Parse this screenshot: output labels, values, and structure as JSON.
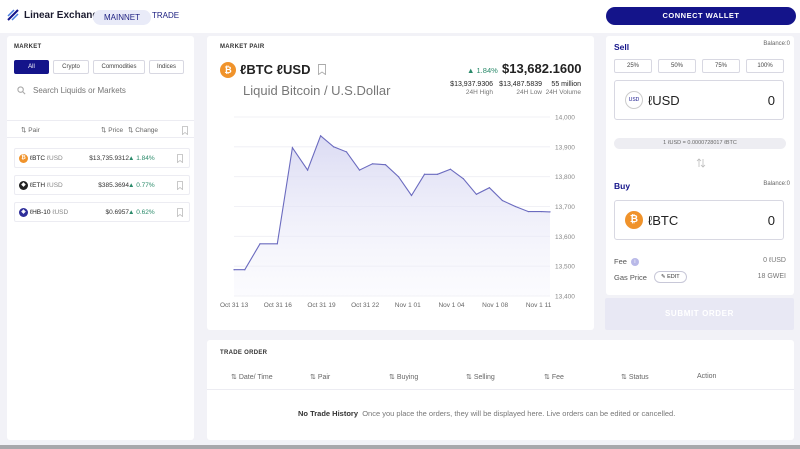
{
  "header": {
    "brand": "Linear Exchange",
    "network": "MAINNET",
    "trade_link": "TRADE",
    "connect_wallet": "CONNECT WALLET"
  },
  "market": {
    "title": "MARKET",
    "filters": [
      "All",
      "Crypto",
      "Commodities",
      "Indices"
    ],
    "search_placeholder": "Search Liquids or Markets",
    "columns": {
      "pair": "Pair",
      "price": "Price",
      "change": "Change"
    },
    "rows": [
      {
        "base": "ℓBTC",
        "quote": "ℓUSD",
        "price": "$13,735.9312",
        "change": "1.84%",
        "coin_color": "#f0932b",
        "coin_symbol": "₿"
      },
      {
        "base": "ℓETH",
        "quote": "ℓUSD",
        "price": "$385.3694",
        "change": "0.77%",
        "coin_color": "#222222",
        "coin_symbol": "◆"
      },
      {
        "base": "ℓHB-10",
        "quote": "ℓUSD",
        "price": "$0.6957",
        "change": "0.62%",
        "coin_color": "#2e2e9a",
        "coin_symbol": "◈"
      }
    ]
  },
  "chart_panel": {
    "title": "MARKET PAIR",
    "pair": "ℓBTC ℓUSD",
    "pair_full": "Liquid Bitcoin / U.S.Dollar",
    "change": "1.84%",
    "price": "$13,682.1600",
    "high": "$13,937.9306",
    "high_label": "24H High",
    "low": "$13,487.5839",
    "low_label": "24H Low",
    "volume": "55 million",
    "volume_label": "24H Volume"
  },
  "chart_data": {
    "type": "area",
    "title": "",
    "xlabel": "",
    "ylabel": "",
    "ylim": [
      13400,
      14000
    ],
    "y_ticks": [
      "14,000",
      "13,900",
      "13,800",
      "13,700",
      "13,600",
      "13,500",
      "13,400"
    ],
    "x_ticks": [
      "Oct 31 13",
      "Oct 31 16",
      "Oct 31 19",
      "Oct 31 22",
      "Nov 1 01",
      "Nov 1 04",
      "Nov 1 08",
      "Nov 1 11"
    ],
    "series": [
      {
        "name": "ℓBTC/ℓUSD",
        "x": [
          0,
          0.25,
          0.6,
          1.0,
          1.35,
          1.7,
          2.0,
          2.3,
          2.6,
          2.9,
          3.2,
          3.5,
          3.8,
          4.1,
          4.4,
          4.7,
          5.0,
          5.3,
          5.6,
          5.9,
          6.2,
          6.5,
          6.8,
          7.1,
          7.3
        ],
        "values": [
          13488,
          13488,
          13575,
          13575,
          13897,
          13822,
          13937,
          13900,
          13883,
          13822,
          13843,
          13840,
          13800,
          13737,
          13808,
          13808,
          13825,
          13793,
          13741,
          13763,
          13720,
          13700,
          13683,
          13683,
          13682
        ]
      }
    ]
  },
  "order": {
    "title": "TRADE ORDER",
    "columns": [
      "Date/ Time",
      "Pair",
      "Buying",
      "Selling",
      "Fee",
      "Status",
      "Action"
    ],
    "empty_title": "No Trade History",
    "empty_text": "Once you place the orders, they will be displayed here. Live orders can be edited or cancelled."
  },
  "trade": {
    "sell_label": "Sell",
    "sell_balance": "Balance:0",
    "percents": [
      "25%",
      "50%",
      "75%",
      "100%"
    ],
    "sell_symbol": "ℓUSD",
    "sell_value": "0",
    "sell_coin_text": "USD",
    "rate": "1 ℓUSD = 0.0000728017 ℓBTC",
    "buy_label": "Buy",
    "buy_balance": "Balance:0",
    "buy_symbol": "ℓBTC",
    "buy_value": "0",
    "buy_coin_text": "₿",
    "fee_label": "Fee",
    "fee_value": "0 ℓUSD",
    "gas_label": "Gas Price",
    "edit_label": "EDIT",
    "gas_value": "18 GWEI",
    "submit": "SUBMIT ORDER"
  }
}
